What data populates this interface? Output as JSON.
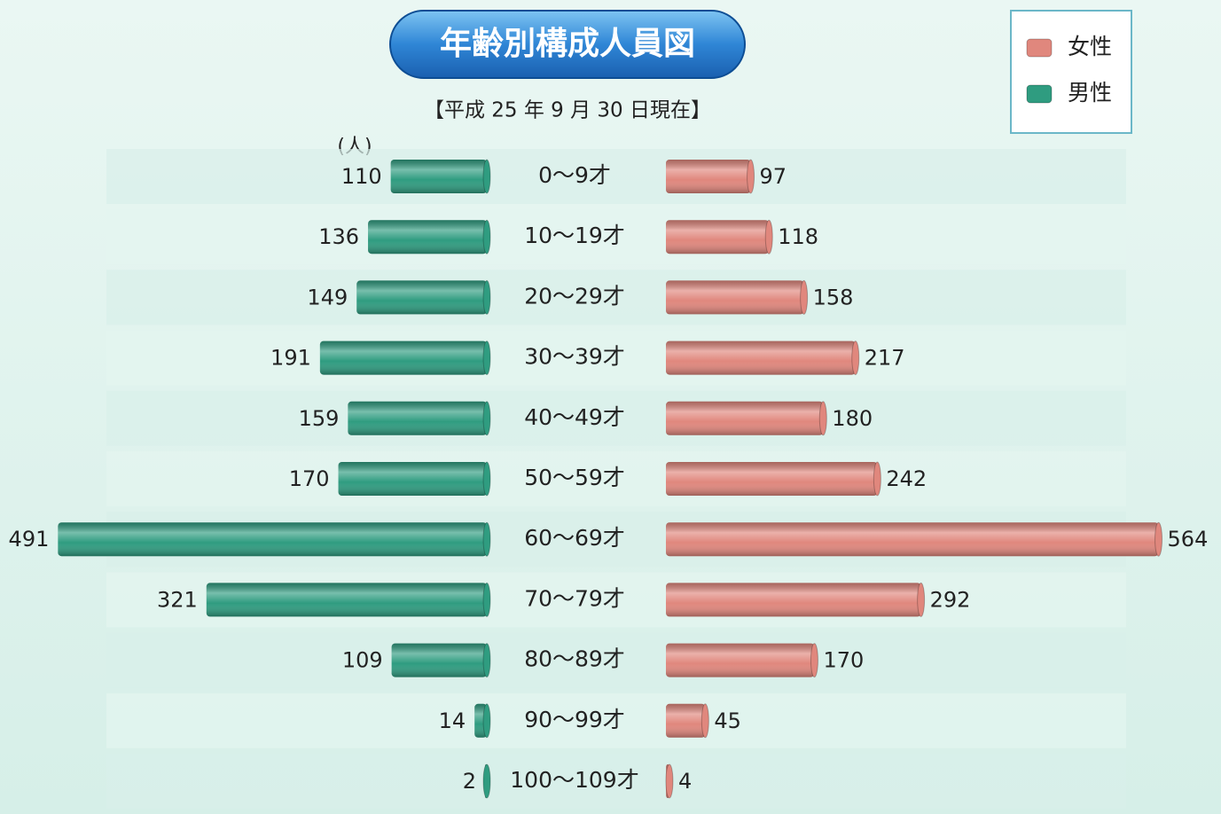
{
  "chart_data": {
    "type": "pyramid",
    "title": "年齢別構成人員図",
    "subtitle": "【平成 25 年 9 月 30 日現在】",
    "unit_label": "(人)",
    "categories": [
      "0～9才",
      "10～19才",
      "20～29才",
      "30～39才",
      "40～49才",
      "50～59才",
      "60～69才",
      "70～79才",
      "80～89才",
      "90～99才",
      "100～109才"
    ],
    "series": [
      {
        "name": "男性",
        "color": "#2f9c80",
        "values": [
          110,
          136,
          149,
          191,
          159,
          170,
          491,
          321,
          109,
          14,
          2
        ]
      },
      {
        "name": "女性",
        "color": "#e0877d",
        "values": [
          97,
          118,
          158,
          217,
          180,
          242,
          564,
          292,
          170,
          45,
          4
        ]
      }
    ]
  }
}
